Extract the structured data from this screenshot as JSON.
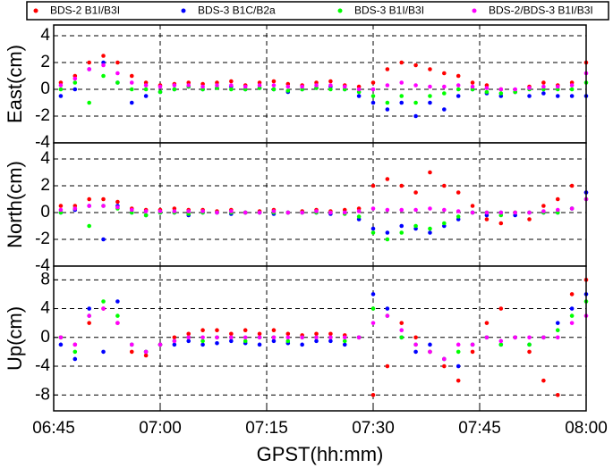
{
  "chart_data": [
    {
      "type": "scatter",
      "ylabel": "East(cm)",
      "ylim": [
        -4,
        4.8
      ],
      "yticks": [
        -4,
        -2,
        0,
        2,
        4
      ],
      "xlim": [
        "06:45",
        "08:00"
      ],
      "xticks": [
        "06:45",
        "07:00",
        "07:15",
        "07:30",
        "07:45",
        "08:00"
      ],
      "grid": true,
      "x": [
        "06:46",
        "06:48",
        "06:50",
        "06:52",
        "06:54",
        "06:56",
        "06:58",
        "07:00",
        "07:02",
        "07:04",
        "07:06",
        "07:08",
        "07:10",
        "07:12",
        "07:14",
        "07:16",
        "07:18",
        "07:20",
        "07:22",
        "07:24",
        "07:26",
        "07:28",
        "07:30",
        "07:32",
        "07:34",
        "07:36",
        "07:38",
        "07:40",
        "07:42",
        "07:44",
        "07:46",
        "07:48",
        "07:50",
        "07:52",
        "07:54",
        "07:56",
        "07:58",
        "08:00"
      ],
      "series": [
        {
          "name": "BDS-2 B1I/B3I",
          "color": "#ff0000",
          "values": [
            0.5,
            1,
            2,
            2.5,
            2,
            1,
            0.5,
            0.3,
            0.4,
            0.5,
            0.4,
            0.5,
            0.6,
            0.3,
            0.5,
            0.6,
            0.4,
            0.3,
            0.5,
            0.6,
            0.3,
            0.2,
            0.5,
            1.5,
            2,
            1.8,
            1.5,
            1.2,
            1,
            0.5,
            0.3,
            0,
            -0.2,
            0.2,
            0.5,
            0.3,
            0.5,
            2
          ]
        },
        {
          "name": "BDS-3 B1C/B2a",
          "color": "#0000ff",
          "values": [
            -0.5,
            0,
            1.5,
            2,
            0.5,
            -1,
            -0.5,
            -0.2,
            0,
            0.2,
            0,
            0.1,
            0.2,
            0,
            0.1,
            0,
            -0.2,
            0,
            0.1,
            0.2,
            0,
            -0.5,
            -1,
            -1.5,
            -1,
            -2,
            -1,
            -1.5,
            -0.5,
            0,
            -0.3,
            -0.5,
            -0.2,
            -0.5,
            -0.3,
            -0.5,
            -0.5,
            -0.5
          ]
        },
        {
          "name": "BDS-3 B1I/B3I",
          "color": "#00ff00",
          "values": [
            0,
            0.5,
            -1,
            1,
            0.5,
            0,
            0,
            -0.2,
            0,
            0.2,
            0,
            0.1,
            0,
            0,
            0.1,
            0,
            -0.1,
            0,
            0.1,
            0,
            0,
            -0.2,
            -0.5,
            -1,
            -0.5,
            -1,
            -0.5,
            -0.3,
            0,
            0,
            -0.2,
            -0.3,
            -0.2,
            0,
            0,
            0,
            0,
            0.5
          ]
        },
        {
          "name": "BDS-2/BDS-3 B1I/B3I",
          "color": "#ff00ff",
          "values": [
            0.3,
            0.8,
            1.5,
            1.8,
            1.2,
            0.5,
            0.3,
            0.2,
            0.3,
            0.3,
            0.2,
            0.3,
            0.3,
            0.2,
            0.3,
            0.3,
            0.2,
            0.2,
            0.3,
            0.3,
            0.2,
            0,
            0,
            0.3,
            0.5,
            0.3,
            0.2,
            0.2,
            0.3,
            0.2,
            0.1,
            0,
            0,
            0.1,
            0.2,
            0.2,
            0.3,
            1.2
          ]
        }
      ]
    },
    {
      "type": "scatter",
      "ylabel": "North(cm)",
      "ylim": [
        -4,
        5.2
      ],
      "yticks": [
        -4,
        -2,
        0,
        2,
        4
      ],
      "xlim": [
        "06:45",
        "08:00"
      ],
      "xticks": [
        "06:45",
        "07:00",
        "07:15",
        "07:30",
        "07:45",
        "08:00"
      ],
      "grid": true,
      "x": [
        "06:46",
        "06:48",
        "06:50",
        "06:52",
        "06:54",
        "06:56",
        "06:58",
        "07:00",
        "07:02",
        "07:04",
        "07:06",
        "07:08",
        "07:10",
        "07:12",
        "07:14",
        "07:16",
        "07:18",
        "07:20",
        "07:22",
        "07:24",
        "07:26",
        "07:28",
        "07:30",
        "07:32",
        "07:34",
        "07:36",
        "07:38",
        "07:40",
        "07:42",
        "07:44",
        "07:46",
        "07:48",
        "07:50",
        "07:52",
        "07:54",
        "07:56",
        "07:58",
        "08:00"
      ],
      "series": [
        {
          "color": "#ff0000",
          "values": [
            0.5,
            0.5,
            1,
            1,
            0.8,
            0.3,
            0.2,
            0.2,
            0.3,
            0.2,
            0.2,
            0.1,
            0.2,
            0,
            0.1,
            0.2,
            0,
            0.1,
            0.2,
            0.1,
            0.2,
            0.3,
            2,
            2.5,
            2,
            1.5,
            3,
            2,
            1.5,
            0.5,
            -0.5,
            -0.8,
            0,
            -0.5,
            0.5,
            1,
            2,
            1.5
          ]
        },
        {
          "color": "#0000ff",
          "values": [
            0,
            0.2,
            0.5,
            -2,
            0.5,
            0,
            -0.2,
            0,
            0,
            -0.2,
            0,
            0,
            -0.1,
            0,
            0,
            -0.1,
            0,
            0,
            0,
            -0.1,
            0,
            -0.5,
            -1.2,
            -1.5,
            -1,
            -1.2,
            -1.5,
            -1,
            -0.5,
            0,
            -0.2,
            0,
            -0.2,
            0,
            0,
            0,
            0.3,
            1.5
          ]
        },
        {
          "color": "#00ff00",
          "values": [
            0,
            0.3,
            -1,
            0.5,
            0.3,
            0,
            -0.2,
            0,
            0,
            -0.1,
            0,
            0,
            0,
            0,
            0,
            0,
            0,
            0,
            0,
            0,
            -0.1,
            -0.3,
            -1.5,
            -2,
            -1.5,
            -1,
            -1.2,
            -0.8,
            -0.3,
            0,
            0,
            -0.2,
            0,
            0,
            0,
            0,
            0.3,
            1
          ]
        },
        {
          "color": "#ff00ff",
          "values": [
            0.2,
            0.3,
            0.5,
            0.5,
            0.4,
            0.2,
            0.1,
            0.1,
            0.1,
            0.1,
            0.1,
            0,
            0.1,
            0,
            0,
            0.1,
            0,
            0,
            0.1,
            0,
            0,
            0.1,
            0.3,
            0.2,
            0.2,
            0.2,
            0.3,
            0.2,
            0.1,
            0,
            0,
            0,
            0,
            0,
            0.1,
            0.2,
            0.3,
            1
          ]
        }
      ]
    },
    {
      "type": "scatter",
      "ylabel": "Up(cm)",
      "xlabel": "GPST(hh:mm)",
      "ylim": [
        -10.2,
        9.9
      ],
      "yticks": [
        -8,
        -4,
        0,
        4,
        8
      ],
      "xlim": [
        "06:45",
        "08:00"
      ],
      "xticks": [
        "06:45",
        "07:00",
        "07:15",
        "07:30",
        "07:45",
        "08:00"
      ],
      "grid": true,
      "x": [
        "06:46",
        "06:48",
        "06:50",
        "06:52",
        "06:54",
        "06:56",
        "06:58",
        "07:00",
        "07:02",
        "07:04",
        "07:06",
        "07:08",
        "07:10",
        "07:12",
        "07:14",
        "07:16",
        "07:18",
        "07:20",
        "07:22",
        "07:24",
        "07:26",
        "07:28",
        "07:30",
        "07:32",
        "07:34",
        "07:36",
        "07:38",
        "07:40",
        "07:42",
        "07:44",
        "07:46",
        "07:48",
        "07:50",
        "07:52",
        "07:54",
        "07:56",
        "07:58",
        "08:00"
      ],
      "series": [
        {
          "color": "#ff0000",
          "values": [
            0,
            -1,
            2,
            4,
            2,
            -2,
            -2.5,
            -1,
            0,
            0.5,
            1,
            1,
            0.5,
            1,
            0.5,
            1,
            0.5,
            0.3,
            0.5,
            0.5,
            0.3,
            0,
            -8,
            -4,
            2,
            0,
            -2,
            -4,
            -6,
            -2,
            2,
            4,
            0,
            -2,
            -6,
            -8,
            6,
            8
          ]
        },
        {
          "color": "#0000ff",
          "values": [
            -1,
            -3,
            4,
            -2,
            5,
            -1,
            -2,
            -1,
            -1,
            -0.5,
            -1,
            -0.8,
            -0.5,
            -0.8,
            -1,
            -0.5,
            -0.8,
            -1,
            -0.5,
            -0.5,
            -1,
            0,
            6,
            4,
            0,
            -2,
            -1,
            -3,
            -4,
            -1,
            0,
            -1,
            0,
            -1,
            0,
            2,
            4,
            6
          ]
        },
        {
          "color": "#00ff00",
          "values": [
            0,
            -2,
            3,
            5,
            3,
            -1,
            -2,
            -1,
            -0.5,
            0,
            -0.5,
            0,
            0,
            -0.5,
            0,
            0,
            -0.5,
            0,
            0,
            0,
            -0.5,
            0,
            4,
            3,
            0,
            -1,
            -2,
            -3,
            -2,
            -1,
            0,
            -1,
            0,
            -1,
            0,
            1,
            3,
            5
          ]
        },
        {
          "color": "#ff00ff",
          "values": [
            0,
            -1,
            3,
            4,
            2,
            -1,
            -2,
            -1,
            -0.5,
            0,
            0,
            0,
            0,
            0,
            0,
            0,
            0,
            0,
            0,
            0,
            0,
            0,
            2,
            3,
            1,
            -1,
            -2,
            -3,
            -1,
            -1,
            0,
            -0.5,
            0,
            0,
            0,
            0,
            2,
            3
          ]
        }
      ]
    }
  ]
}
